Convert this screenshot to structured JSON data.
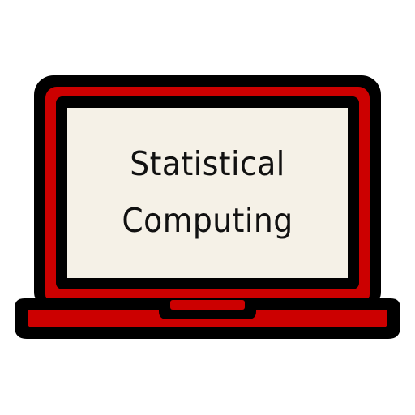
{
  "screen": {
    "line1": "Statistical",
    "line2": "Computing"
  },
  "colors": {
    "outline": "#000000",
    "body": "#cc0000",
    "screen": "#f5f1e7",
    "text": "#111111"
  },
  "icon": "laptop-icon"
}
